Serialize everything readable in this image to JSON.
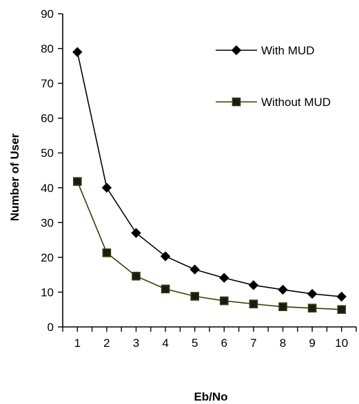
{
  "chart_data": {
    "type": "line",
    "xlabel": "Eb/No",
    "ylabel": "Number of User",
    "x": [
      1,
      2,
      3,
      4,
      5,
      6,
      7,
      8,
      9,
      10
    ],
    "xlim": [
      0.5,
      10.5
    ],
    "ylim": [
      0,
      90
    ],
    "yticks": [
      0,
      10,
      20,
      30,
      40,
      50,
      60,
      70,
      80,
      90
    ],
    "grid": false,
    "legend_position": "top-right",
    "series": [
      {
        "name": "With MUD",
        "values": [
          79,
          40,
          27,
          20.3,
          16.5,
          14.1,
          12,
          10.7,
          9.5,
          8.7
        ],
        "marker": "diamond",
        "color": "#000000"
      },
      {
        "name": "Without MUD",
        "values": [
          41.8,
          21.3,
          14.6,
          10.9,
          8.8,
          7.5,
          6.6,
          5.8,
          5.4,
          5.0
        ],
        "marker": "square",
        "color": "#3a3a00",
        "marker_fill": "#1a1a1a"
      }
    ]
  }
}
